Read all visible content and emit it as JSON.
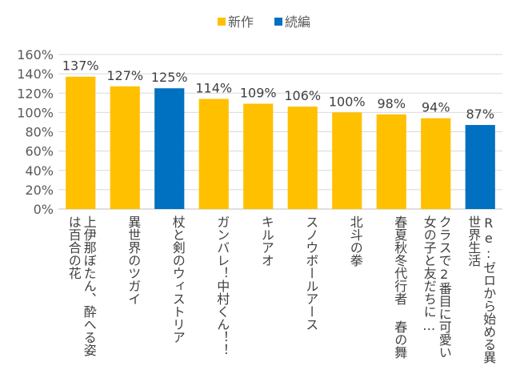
{
  "chart_data": {
    "type": "bar",
    "legend": {
      "placement": "top-center",
      "entries": [
        {
          "name": "新作",
          "color": "#FFC000"
        },
        {
          "name": "続編",
          "color": "#0070C0"
        }
      ]
    },
    "categories": [
      "上伊那ぼたん、酔へる姿は百合の花",
      "異世界のツガイ",
      "杖と剣のウィストリア",
      "ガンバレ！中村くん！！",
      "キルアオ",
      "スノウボールアース",
      "北斗の拳",
      "春夏秋冬代行者 春の舞",
      "クラスで2番目に可愛い女の子と友だちに…",
      "Re:ゼロから始める異世界生活"
    ],
    "values": [
      137,
      127,
      125,
      114,
      109,
      106,
      100,
      98,
      94,
      87
    ],
    "value_labels": [
      "137%",
      "127%",
      "125%",
      "114%",
      "109%",
      "106%",
      "100%",
      "98%",
      "94%",
      "87%"
    ],
    "series_membership": [
      "新作",
      "新作",
      "続編",
      "新作",
      "新作",
      "新作",
      "新作",
      "新作",
      "新作",
      "続編"
    ],
    "y_ticks": [
      "0%",
      "20%",
      "40%",
      "60%",
      "80%",
      "100%",
      "120%",
      "140%",
      "160%"
    ],
    "ylim": [
      0,
      160
    ],
    "grid": true
  }
}
